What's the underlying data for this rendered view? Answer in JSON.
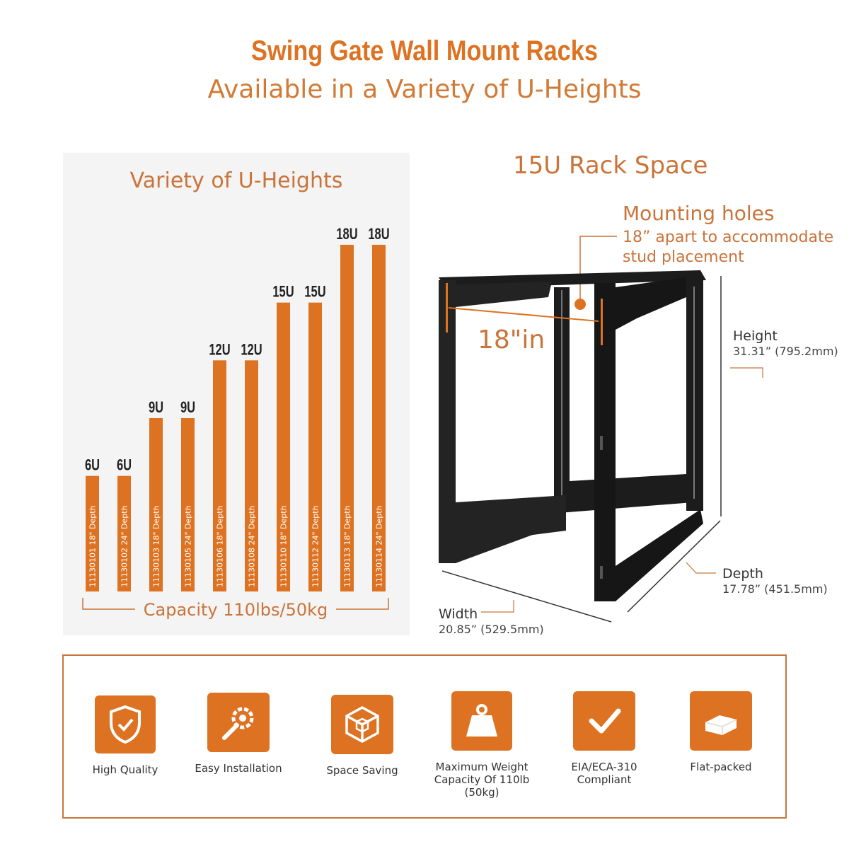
{
  "header": {
    "title": "Swing Gate Wall Mount Racks",
    "subtitle": "Available in a Variety of U-Heights"
  },
  "chart_data": {
    "type": "bar",
    "title": "Variety of U-Heights",
    "categories": [
      "11130101",
      "11130102",
      "11130103",
      "11130105",
      "11130106",
      "11130108",
      "11130110",
      "11130112",
      "11130113",
      "11130114"
    ],
    "bar_labels": [
      "6U",
      "6U",
      "9U",
      "9U",
      "12U",
      "12U",
      "15U",
      "15U",
      "18U",
      "18U"
    ],
    "depths": [
      "18\" Depth",
      "24\" Depth",
      "18\" Depth",
      "24\" Depth",
      "18\" Depth",
      "24\" Depth",
      "18\" Depth",
      "24\" Depth",
      "18\" Depth",
      "24\" Depth"
    ],
    "values": [
      6,
      6,
      9,
      9,
      12,
      12,
      15,
      15,
      18,
      18
    ],
    "ylim": [
      0,
      18
    ],
    "footer": "Capacity 110lbs/50kg",
    "bar_color": "#dd7322"
  },
  "rack": {
    "title": "15U Rack Space",
    "mounting_title": "Mounting holes",
    "mounting_desc": "18” apart to accommodate stud placement",
    "span": "18\"in",
    "height_label": "Height",
    "height_value": "31.31” (795.2mm)",
    "depth_label": "Depth",
    "depth_value": "17.78” (451.5mm)",
    "width_label": "Width",
    "width_value": "20.85” (529.5mm)"
  },
  "features": [
    {
      "label": "High Quality",
      "icon": "shield-check-icon"
    },
    {
      "label": "Easy Installation",
      "icon": "gear-wrench-icon"
    },
    {
      "label": "Space Saving",
      "icon": "cube-icon"
    },
    {
      "label": "Maximum Weight Capacity Of 110lb (50kg)",
      "icon": "weight-icon"
    },
    {
      "label": "EIA/ECA-310 Compliant",
      "icon": "checkmark-icon"
    },
    {
      "label": "Flat-packed",
      "icon": "box-icon"
    }
  ],
  "colors": {
    "accent": "#dd7322",
    "accent_text": "#c9743a"
  }
}
